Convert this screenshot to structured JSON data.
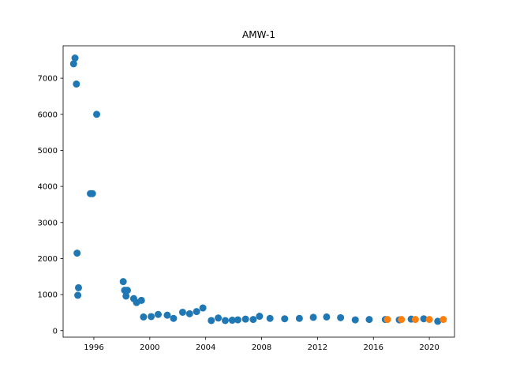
{
  "chart_data": {
    "type": "scatter",
    "title": "AMW-1",
    "xlabel": "",
    "ylabel": "",
    "xlim": [
      1993.8,
      2021.8
    ],
    "ylim": [
      -180,
      7900
    ],
    "xticks": [
      {
        "value": 1996,
        "label": "1996"
      },
      {
        "value": 2000,
        "label": "2000"
      },
      {
        "value": 2004,
        "label": "2004"
      },
      {
        "value": 2008,
        "label": "2008"
      },
      {
        "value": 2012,
        "label": "2012"
      },
      {
        "value": 2016,
        "label": "2016"
      },
      {
        "value": 2020,
        "label": "2020"
      }
    ],
    "yticks": [
      {
        "value": 0,
        "label": "0"
      },
      {
        "value": 1000,
        "label": "1000"
      },
      {
        "value": 2000,
        "label": "2000"
      },
      {
        "value": 3000,
        "label": "3000"
      },
      {
        "value": 4000,
        "label": "4000"
      },
      {
        "value": 5000,
        "label": "5000"
      },
      {
        "value": 6000,
        "label": "6000"
      },
      {
        "value": 7000,
        "label": "7000"
      }
    ],
    "grid": false,
    "series": [
      {
        "color": "#1f77b4",
        "points": [
          [
            1994.55,
            7400
          ],
          [
            1994.65,
            7560
          ],
          [
            1994.75,
            6840
          ],
          [
            1994.8,
            2150
          ],
          [
            1994.85,
            980
          ],
          [
            1994.9,
            1190
          ],
          [
            1995.75,
            3800
          ],
          [
            1995.9,
            3800
          ],
          [
            1996.2,
            6000
          ],
          [
            1998.1,
            1360
          ],
          [
            1998.2,
            1120
          ],
          [
            1998.3,
            960
          ],
          [
            1998.4,
            1120
          ],
          [
            1998.85,
            890
          ],
          [
            1999.05,
            780
          ],
          [
            1999.4,
            840
          ],
          [
            1999.55,
            380
          ],
          [
            2000.1,
            390
          ],
          [
            2000.6,
            450
          ],
          [
            2001.25,
            430
          ],
          [
            2001.7,
            340
          ],
          [
            2002.35,
            510
          ],
          [
            2002.85,
            470
          ],
          [
            2003.35,
            530
          ],
          [
            2003.8,
            630
          ],
          [
            2004.4,
            280
          ],
          [
            2004.9,
            350
          ],
          [
            2005.4,
            280
          ],
          [
            2005.9,
            290
          ],
          [
            2006.3,
            300
          ],
          [
            2006.85,
            320
          ],
          [
            2007.4,
            310
          ],
          [
            2007.85,
            400
          ],
          [
            2008.6,
            340
          ],
          [
            2009.65,
            330
          ],
          [
            2010.7,
            340
          ],
          [
            2011.7,
            370
          ],
          [
            2012.65,
            380
          ],
          [
            2013.65,
            360
          ],
          [
            2014.7,
            300
          ],
          [
            2015.7,
            310
          ],
          [
            2016.85,
            310
          ],
          [
            2017.85,
            300
          ],
          [
            2018.7,
            320
          ],
          [
            2019.6,
            330
          ],
          [
            2020.6,
            260
          ]
        ]
      },
      {
        "color": "#ff7f0e",
        "points": [
          [
            2017.0,
            310
          ],
          [
            2018.0,
            310
          ],
          [
            2019.0,
            310
          ],
          [
            2020.0,
            310
          ],
          [
            2021.0,
            310
          ]
        ]
      }
    ]
  }
}
